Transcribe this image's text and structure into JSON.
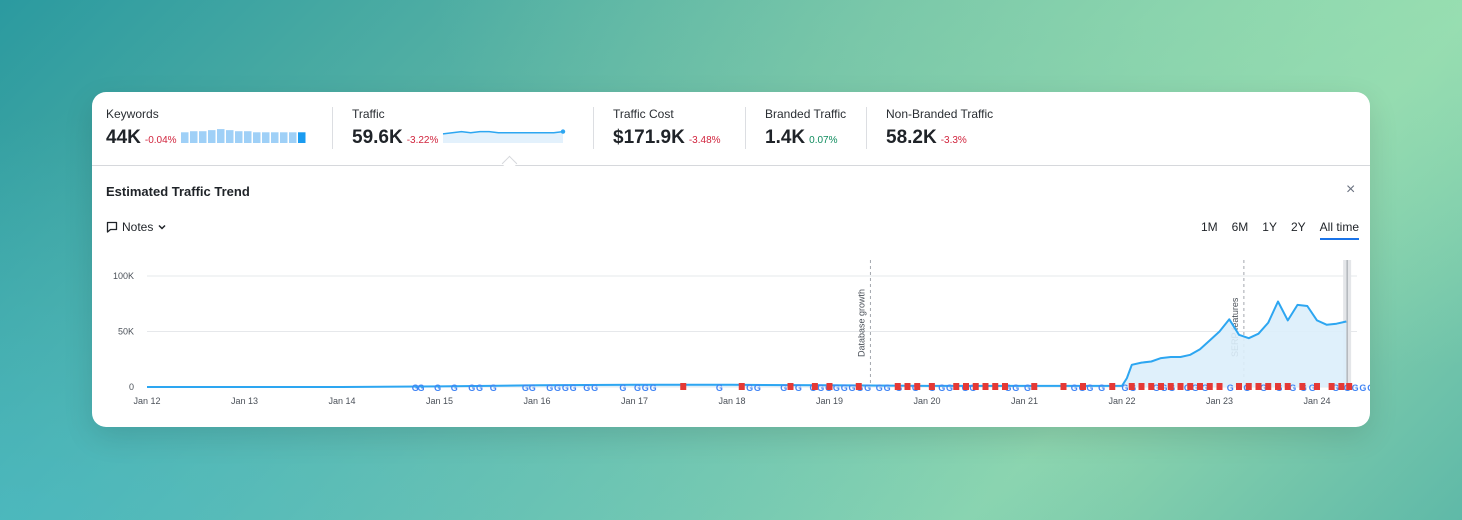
{
  "metrics": [
    {
      "label": "Keywords",
      "value": "44K",
      "delta": "-0.04%",
      "trend": "neg"
    },
    {
      "label": "Traffic",
      "value": "59.6K",
      "delta": "-3.22%",
      "trend": "neg"
    },
    {
      "label": "Traffic Cost",
      "value": "$171.9K",
      "delta": "-3.48%",
      "trend": "neg"
    },
    {
      "label": "Branded Traffic",
      "value": "1.4K",
      "delta": "0.07%",
      "trend": "pos"
    },
    {
      "label": "Non-Branded Traffic",
      "value": "58.2K",
      "delta": "-3.3%",
      "trend": "neg"
    }
  ],
  "sparklines": {
    "keywords_bars": [
      10,
      11,
      11,
      12,
      13,
      12,
      11,
      11,
      10,
      10,
      10,
      10,
      10,
      10
    ],
    "traffic_line": [
      8,
      9,
      10,
      9,
      10,
      10,
      9,
      9,
      9,
      9,
      9,
      9,
      9,
      10
    ]
  },
  "panel": {
    "title": "Estimated Traffic Trend",
    "close_icon": "×"
  },
  "notes": {
    "label": "Notes"
  },
  "ranges": [
    "1M",
    "6M",
    "1Y",
    "2Y",
    "All time"
  ],
  "active_range": "All time",
  "colors": {
    "line": "#2da6f1",
    "area": "#dbeefb",
    "marker_g": "#4285f4",
    "marker_red": "#e53935",
    "grid": "#e6e8eb"
  },
  "chart_data": {
    "type": "area",
    "title": "Estimated Traffic Trend",
    "x_ticks": [
      "Jan 12",
      "Jan 13",
      "Jan 14",
      "Jan 15",
      "Jan 16",
      "Jan 17",
      "Jan 18",
      "Jan 19",
      "Jan 20",
      "Jan 21",
      "Jan 22",
      "Jan 23",
      "Jan 24"
    ],
    "y_ticks": [
      "0",
      "50K",
      "100K"
    ],
    "ylim": [
      0,
      100000
    ],
    "x_range": [
      0,
      12.35
    ],
    "series": [
      {
        "name": "Traffic",
        "x": [
          0,
          0.9,
          1.5,
          2.0,
          3.0,
          3.5,
          4.0,
          5.0,
          6.0,
          7.0,
          8.0,
          9.0,
          9.5,
          9.8,
          10.0,
          10.05,
          10.1,
          10.2,
          10.3,
          10.4,
          10.5,
          10.6,
          10.7,
          10.8,
          10.9,
          11.0,
          11.1,
          11.2,
          11.3,
          11.4,
          11.5,
          11.6,
          11.7,
          11.8,
          11.9,
          12.0,
          12.1,
          12.2,
          12.3
        ],
        "values": [
          0,
          0,
          0,
          0,
          500,
          1000,
          1500,
          2000,
          2000,
          1500,
          1000,
          1000,
          1000,
          1000,
          1000,
          8000,
          20000,
          22000,
          23000,
          26000,
          27000,
          27000,
          29000,
          34000,
          42000,
          50000,
          61000,
          47000,
          44000,
          48000,
          58000,
          77000,
          60000,
          74000,
          73000,
          60000,
          56000,
          57000,
          59000
        ]
      }
    ],
    "annotations": [
      {
        "x": 7.42,
        "label": "Database growth"
      },
      {
        "x": 11.25,
        "label": "SERP features"
      }
    ]
  }
}
